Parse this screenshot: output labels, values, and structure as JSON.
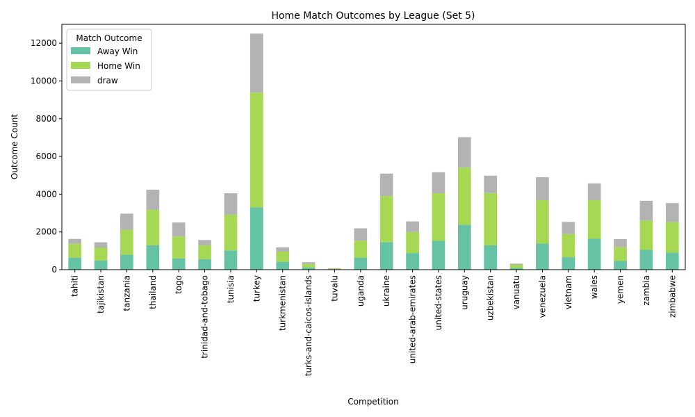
{
  "chart_data": {
    "type": "bar",
    "stacked": true,
    "title": "Home Match Outcomes by League (Set 5)",
    "xlabel": "Competition",
    "ylabel": "Outcome Count",
    "ylim": [
      0,
      13000
    ],
    "yticks": [
      0,
      2000,
      4000,
      6000,
      8000,
      10000,
      12000
    ],
    "legend_title": "Match Outcome",
    "legend_position": "top-left",
    "grid": false,
    "categories": [
      "tahiti",
      "tajikistan",
      "tanzania",
      "thailand",
      "togo",
      "trinidad-and-tobago",
      "tunisia",
      "turkey",
      "turkmenistan",
      "turks-and-caicos-islands",
      "tuvalu",
      "uganda",
      "ukraine",
      "united-arab-emirates",
      "united-states",
      "uruguay",
      "uzbekistan",
      "vanuatu",
      "venezuela",
      "vietnam",
      "wales",
      "yemen",
      "zambia",
      "zimbabwe"
    ],
    "series": [
      {
        "name": "Away Win",
        "color": "#66c2a5",
        "values": [
          640,
          480,
          790,
          1300,
          600,
          560,
          1020,
          3300,
          420,
          120,
          20,
          640,
          1460,
          880,
          1530,
          2380,
          1300,
          90,
          1380,
          660,
          1640,
          460,
          1050,
          900
        ]
      },
      {
        "name": "Home Win",
        "color": "#a6d854",
        "values": [
          730,
          680,
          1330,
          1870,
          1160,
          740,
          1900,
          6080,
          540,
          180,
          30,
          900,
          2440,
          1120,
          2520,
          3040,
          2760,
          170,
          2300,
          1230,
          2040,
          740,
          1550,
          1620
        ]
      },
      {
        "name": "draw",
        "color": "#b3b3b3",
        "values": [
          260,
          290,
          850,
          1070,
          740,
          270,
          1130,
          3130,
          220,
          100,
          30,
          650,
          1190,
          560,
          1110,
          1600,
          920,
          60,
          1220,
          640,
          890,
          420,
          1050,
          1010
        ]
      }
    ]
  }
}
